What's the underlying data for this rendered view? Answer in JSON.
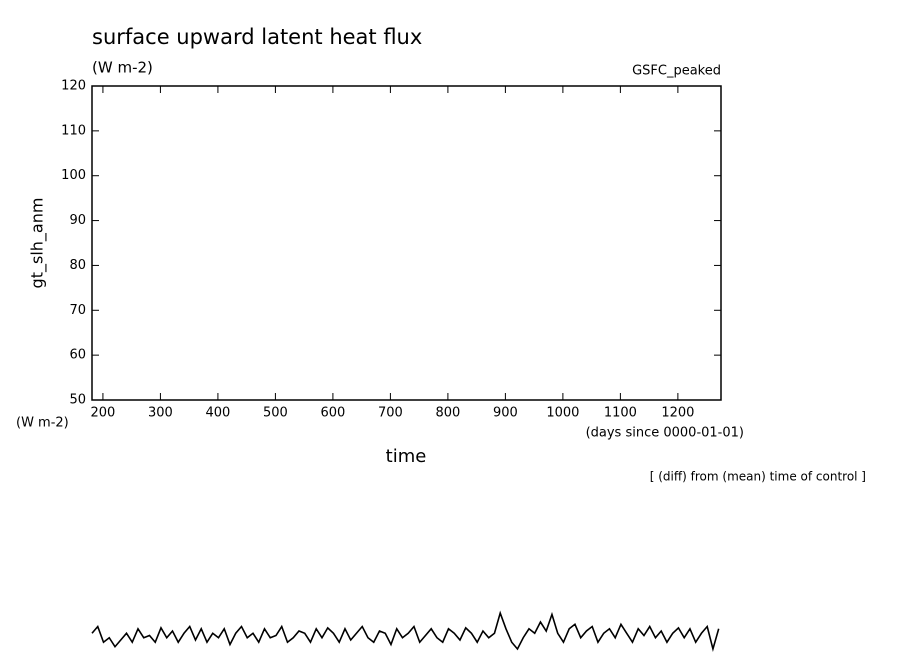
{
  "chart_data": {
    "type": "line",
    "title": "surface upward latent heat flux",
    "subtitle": "(W m-2)",
    "run_label": "GSFC_peaked",
    "ylabel": "gt_slh_anm",
    "yunits": "(W m-2)",
    "xlabel": "time",
    "xunits": "(days since 0000-01-01)",
    "note": "[ (diff) from (mean) time of control ]",
    "xlim": [
      181,
      1275
    ],
    "ylim": [
      50,
      120
    ],
    "xticks": [
      200,
      300,
      400,
      500,
      600,
      700,
      800,
      900,
      1000,
      1100,
      1200
    ],
    "yticks": [
      50,
      60,
      70,
      80,
      90,
      100,
      110,
      120
    ],
    "color": "#000000",
    "x": [
      181,
      191,
      201,
      211,
      221,
      231,
      241,
      251,
      261,
      271,
      281,
      291,
      301,
      311,
      321,
      331,
      341,
      351,
      361,
      371,
      381,
      391,
      401,
      411,
      421,
      431,
      441,
      451,
      461,
      471,
      481,
      491,
      501,
      511,
      521,
      531,
      541,
      551,
      561,
      571,
      581,
      591,
      601,
      611,
      621,
      631,
      641,
      651,
      661,
      671,
      681,
      691,
      701,
      711,
      721,
      731,
      741,
      751,
      761,
      771,
      781,
      791,
      801,
      811,
      821,
      831,
      841,
      851,
      861,
      871,
      881,
      891,
      901,
      911,
      921,
      931,
      941,
      951,
      961,
      971,
      981,
      991,
      1001,
      1011,
      1021,
      1031,
      1041,
      1051,
      1061,
      1071,
      1081,
      1091,
      1101,
      1111,
      1121,
      1131,
      1141,
      1151,
      1161,
      1171,
      1181,
      1191,
      1201,
      1211,
      1221,
      1231,
      1241,
      1251,
      1261,
      1271
    ],
    "values": [
      -2,
      -0.5,
      -4,
      -3,
      -5,
      -3.5,
      -2,
      -4,
      -1,
      -3,
      -2.5,
      -4,
      -0.8,
      -3,
      -1.5,
      -4,
      -2,
      -0.5,
      -3.5,
      -1,
      -4,
      -2,
      -3,
      -1,
      -4.5,
      -2,
      -0.5,
      -3,
      -2,
      -4,
      -1,
      -3,
      -2.5,
      -0.5,
      -4,
      -3,
      -1.5,
      -2,
      -4,
      -1,
      -3,
      -0.8,
      -2,
      -4,
      -1,
      -3.5,
      -2,
      -0.5,
      -3,
      -4,
      -1.5,
      -2,
      -4.5,
      -1,
      -3,
      -2,
      -0.5,
      -4,
      -2.5,
      -1,
      -3,
      -4,
      -1,
      -2,
      -3.5,
      -0.8,
      -2,
      -4,
      -1.5,
      -3,
      -2,
      2.5,
      -1,
      -4,
      -5.5,
      -3,
      -1,
      -2,
      0.5,
      -1.5,
      2.2,
      -2,
      -4,
      -1,
      0,
      -3,
      -1.5,
      -0.5,
      -4,
      -2,
      -1,
      -3,
      0,
      -2,
      -4,
      -1,
      -2.5,
      -0.5,
      -3,
      -1.5,
      -4,
      -2,
      -0.8,
      -3,
      -1,
      -4,
      -2,
      -0.5,
      -5.5,
      -1
    ]
  }
}
